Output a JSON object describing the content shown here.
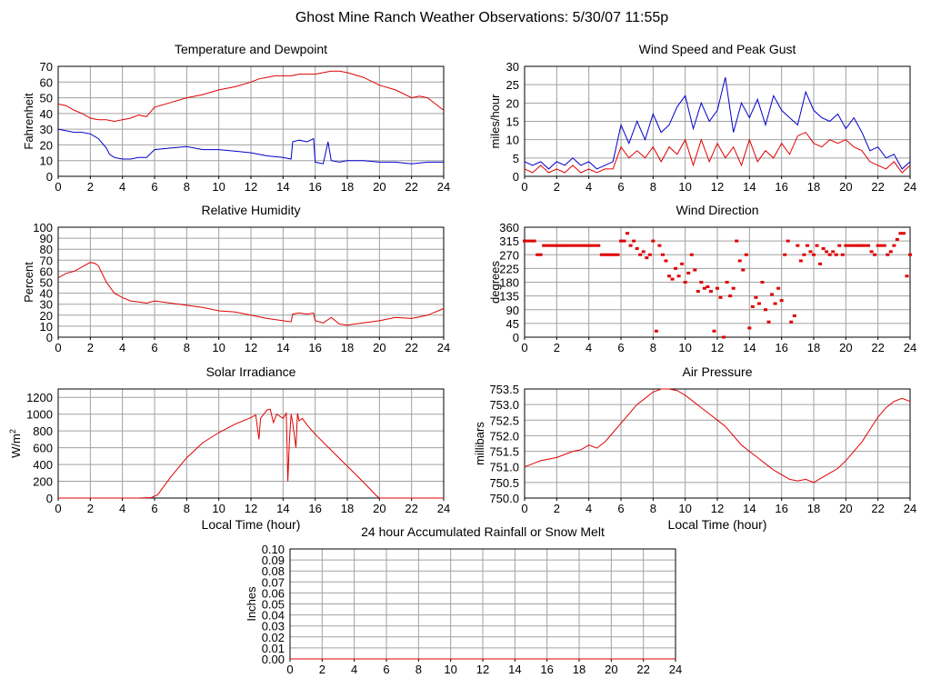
{
  "page_title": "Ghost Mine Ranch Weather Observations: 5/30/07 11:55p",
  "colors": {
    "red": "#e00000",
    "blue": "#0000cc",
    "grid": "#a0a0a0",
    "axis": "#000000"
  },
  "chart_data": [
    {
      "id": "temp",
      "type": "line",
      "title": "Temperature and Dewpoint",
      "ylabel": "Fahrenheit",
      "xlabel": "",
      "xlim": [
        0,
        24
      ],
      "ylim": [
        0,
        70
      ],
      "xticks": [
        "0",
        "2",
        "4",
        "6",
        "8",
        "10",
        "12",
        "14",
        "16",
        "18",
        "20",
        "22",
        "24"
      ],
      "yticks": [
        "0",
        "10",
        "20",
        "30",
        "40",
        "50",
        "60",
        "70"
      ],
      "grid": true,
      "series": [
        {
          "color": "#e00000",
          "x": [
            0,
            0.5,
            1,
            1.5,
            2,
            2.5,
            3,
            3.5,
            4,
            4.5,
            5,
            5.5,
            6,
            7,
            8,
            9,
            10,
            11,
            12,
            12.5,
            13,
            13.5,
            14,
            14.5,
            15,
            15.5,
            16,
            16.5,
            17,
            17.5,
            18,
            19,
            20,
            21,
            22,
            22.5,
            23,
            23.5,
            24
          ],
          "y": [
            46,
            45,
            42,
            40,
            37,
            36,
            36,
            35,
            36,
            37,
            39,
            38,
            44,
            47,
            50,
            52,
            55,
            57,
            60,
            62,
            63,
            64,
            64,
            64,
            65,
            65,
            65,
            66,
            67,
            67,
            66,
            63,
            58,
            55,
            50,
            51,
            50,
            46,
            42
          ]
        },
        {
          "color": "#0000cc",
          "x": [
            0,
            0.5,
            1,
            1.5,
            2,
            2.5,
            3,
            3.2,
            3.5,
            4,
            4.5,
            5,
            5.5,
            6,
            7,
            8,
            9,
            10,
            11,
            12,
            13,
            14,
            14.5,
            14.6,
            15,
            15.5,
            15.9,
            16,
            16.5,
            16.8,
            17,
            17.5,
            18,
            19,
            20,
            21,
            22,
            23,
            24
          ],
          "y": [
            30,
            29,
            28,
            28,
            27,
            24,
            18,
            14,
            12,
            11,
            11,
            12,
            12,
            17,
            18,
            19,
            17,
            17,
            16,
            15,
            13,
            12,
            11,
            22,
            23,
            22,
            24,
            9,
            8,
            22,
            10,
            9,
            10,
            10,
            9,
            9,
            8,
            9,
            9
          ]
        }
      ]
    },
    {
      "id": "wind",
      "type": "line",
      "title": "Wind Speed and Peak Gust",
      "ylabel": "miles/hour",
      "xlabel": "",
      "xlim": [
        0,
        24
      ],
      "ylim": [
        0,
        30
      ],
      "xticks": [
        "0",
        "2",
        "4",
        "6",
        "8",
        "10",
        "12",
        "14",
        "16",
        "18",
        "20",
        "22",
        "24"
      ],
      "yticks": [
        "0",
        "5",
        "10",
        "15",
        "20",
        "25",
        "30"
      ],
      "grid": true,
      "series": [
        {
          "color": "#0000cc",
          "x": [
            0,
            0.5,
            1,
            1.5,
            2,
            2.5,
            3,
            3.5,
            4,
            4.5,
            5,
            5.5,
            6,
            6.5,
            7,
            7.5,
            8,
            8.5,
            9,
            9.5,
            10,
            10.5,
            11,
            11.5,
            12,
            12.5,
            13,
            13.5,
            14,
            14.5,
            15,
            15.5,
            16,
            16.5,
            17,
            17.5,
            18,
            18.5,
            19,
            19.5,
            20,
            20.5,
            21,
            21.5,
            22,
            22.5,
            23,
            23.5,
            24
          ],
          "y": [
            4,
            3,
            4,
            2,
            4,
            3,
            5,
            3,
            4,
            2,
            3,
            4,
            14,
            9,
            15,
            10,
            17,
            12,
            14,
            19,
            22,
            13,
            20,
            15,
            18,
            27,
            12,
            20,
            16,
            21,
            14,
            22,
            18,
            16,
            14,
            23,
            18,
            16,
            15,
            17,
            13,
            16,
            12,
            7,
            8,
            5,
            6,
            2,
            4
          ]
        },
        {
          "color": "#e00000",
          "x": [
            0,
            0.5,
            1,
            1.5,
            2,
            2.5,
            3,
            3.5,
            4,
            4.5,
            5,
            5.5,
            6,
            6.5,
            7,
            7.5,
            8,
            8.5,
            9,
            9.5,
            10,
            10.5,
            11,
            11.5,
            12,
            12.5,
            13,
            13.5,
            14,
            14.5,
            15,
            15.5,
            16,
            16.5,
            17,
            17.5,
            18,
            18.5,
            19,
            19.5,
            20,
            20.5,
            21,
            21.5,
            22,
            22.5,
            23,
            23.5,
            24
          ],
          "y": [
            2,
            1,
            3,
            1,
            2,
            1,
            3,
            1,
            2,
            1,
            2,
            2,
            8,
            5,
            7,
            5,
            8,
            4,
            8,
            6,
            10,
            3,
            10,
            4,
            9,
            5,
            8,
            3,
            10,
            4,
            7,
            5,
            9,
            6,
            11,
            12,
            9,
            8,
            10,
            9,
            10,
            8,
            7,
            4,
            3,
            2,
            4,
            1,
            3
          ]
        }
      ]
    },
    {
      "id": "rh",
      "type": "line",
      "title": "Relative Humidity",
      "ylabel": "Percent",
      "xlabel": "",
      "xlim": [
        0,
        24
      ],
      "ylim": [
        0,
        100
      ],
      "xticks": [
        "0",
        "2",
        "4",
        "6",
        "8",
        "10",
        "12",
        "14",
        "16",
        "18",
        "20",
        "22",
        "24"
      ],
      "yticks": [
        "0",
        "10",
        "20",
        "30",
        "40",
        "50",
        "60",
        "70",
        "80",
        "90",
        "100"
      ],
      "grid": true,
      "series": [
        {
          "color": "#e00000",
          "x": [
            0,
            0.5,
            1,
            1.5,
            2,
            2.3,
            2.5,
            3,
            3.5,
            4,
            4.5,
            5,
            5.5,
            6,
            7,
            8,
            9,
            10,
            11,
            12,
            13,
            14,
            14.5,
            14.6,
            15,
            15.5,
            15.9,
            16,
            16.5,
            17,
            17.5,
            18,
            19,
            20,
            21,
            22,
            23,
            24
          ],
          "y": [
            54,
            58,
            60,
            64,
            68,
            67,
            65,
            50,
            40,
            36,
            33,
            32,
            31,
            33,
            31,
            29,
            27,
            24,
            23,
            20,
            17,
            15,
            14,
            21,
            22,
            21,
            22,
            15,
            13,
            18,
            12,
            11,
            13,
            15,
            18,
            17,
            20,
            26
          ]
        }
      ]
    },
    {
      "id": "wdir",
      "type": "scatter",
      "title": "Wind Direction",
      "ylabel": "degrees",
      "xlabel": "",
      "xlim": [
        0,
        24
      ],
      "ylim": [
        0,
        360
      ],
      "xticks": [
        "0",
        "2",
        "4",
        "6",
        "8",
        "10",
        "12",
        "14",
        "16",
        "18",
        "20",
        "22",
        "24"
      ],
      "yticks": [
        "0",
        "45",
        "90",
        "135",
        "180",
        "225",
        "270",
        "315",
        "360"
      ],
      "grid": true,
      "series": [
        {
          "color": "#e00000",
          "x": [
            0,
            0.2,
            0.4,
            0.6,
            0.8,
            1,
            1.2,
            1.4,
            1.6,
            1.8,
            2,
            2.2,
            2.4,
            2.6,
            2.8,
            3,
            3.2,
            3.4,
            3.6,
            3.8,
            4,
            4.2,
            4.4,
            4.6,
            4.8,
            5,
            5.2,
            5.4,
            5.6,
            5.8,
            6,
            6.2,
            6.4,
            6.6,
            6.8,
            7,
            7.2,
            7.4,
            7.6,
            7.8,
            8,
            8.2,
            8.4,
            8.6,
            8.8,
            9,
            9.2,
            9.4,
            9.6,
            9.8,
            10,
            10.2,
            10.4,
            10.6,
            10.8,
            11,
            11.2,
            11.4,
            11.6,
            11.8,
            12,
            12.2,
            12.4,
            12.6,
            12.8,
            13,
            13.2,
            13.4,
            13.6,
            13.8,
            14,
            14.2,
            14.4,
            14.6,
            14.8,
            15,
            15.2,
            15.4,
            15.6,
            15.8,
            16,
            16.2,
            16.4,
            16.6,
            16.8,
            17,
            17.2,
            17.4,
            17.6,
            17.8,
            18,
            18.2,
            18.4,
            18.6,
            18.8,
            19,
            19.2,
            19.4,
            19.6,
            19.8,
            20,
            20.2,
            20.4,
            20.6,
            20.8,
            21,
            21.2,
            21.4,
            21.6,
            21.8,
            22,
            22.2,
            22.4,
            22.6,
            22.8,
            23,
            23.2,
            23.4,
            23.6,
            23.8,
            24
          ],
          "y": [
            315,
            315,
            315,
            315,
            270,
            270,
            300,
            300,
            300,
            300,
            300,
            300,
            300,
            300,
            300,
            300,
            300,
            300,
            300,
            300,
            300,
            300,
            300,
            300,
            270,
            270,
            270,
            270,
            270,
            270,
            315,
            315,
            340,
            300,
            315,
            290,
            270,
            280,
            260,
            270,
            315,
            20,
            300,
            270,
            250,
            200,
            190,
            225,
            200,
            240,
            180,
            210,
            270,
            220,
            150,
            180,
            160,
            165,
            150,
            20,
            160,
            130,
            0,
            180,
            135,
            160,
            315,
            250,
            220,
            270,
            30,
            100,
            130,
            110,
            180,
            90,
            50,
            140,
            110,
            160,
            120,
            270,
            315,
            50,
            70,
            300,
            250,
            270,
            300,
            280,
            270,
            300,
            240,
            290,
            280,
            270,
            280,
            270,
            300,
            270,
            300,
            300,
            300,
            300,
            300,
            300,
            300,
            300,
            280,
            270,
            300,
            300,
            300,
            270,
            280,
            300,
            320,
            340,
            340,
            200,
            270
          ]
        }
      ]
    },
    {
      "id": "solar",
      "type": "line",
      "title": "Solar Irradiance",
      "ylabel": "W/m2",
      "ylabel_main": "W/m",
      "ylabel_sup": "2",
      "xlabel": "Local Time (hour)",
      "xlim": [
        0,
        24
      ],
      "ylim": [
        0,
        1300
      ],
      "xticks": [
        "0",
        "2",
        "4",
        "6",
        "8",
        "10",
        "12",
        "14",
        "16",
        "18",
        "20",
        "22",
        "24"
      ],
      "yticks": [
        "0",
        "200",
        "400",
        "600",
        "800",
        "1000",
        "1200"
      ],
      "grid": true,
      "series": [
        {
          "color": "#e00000",
          "x": [
            0,
            1,
            2,
            3,
            4,
            5,
            5.8,
            6.2,
            7,
            8,
            9,
            10,
            11,
            12,
            12.3,
            12.5,
            12.6,
            12.8,
            13,
            13.2,
            13.4,
            13.6,
            14,
            14.2,
            14.3,
            14.4,
            14.5,
            14.6,
            14.8,
            14.9,
            15,
            15.2,
            15.5,
            16,
            17,
            18,
            19,
            19.8,
            20,
            21,
            22,
            23,
            24
          ],
          "y": [
            0,
            0,
            0,
            0,
            0,
            0,
            5,
            40,
            250,
            480,
            660,
            780,
            880,
            960,
            990,
            700,
            950,
            1000,
            1050,
            1060,
            900,
            1000,
            950,
            1010,
            200,
            700,
            1000,
            900,
            600,
            1010,
            920,
            950,
            870,
            760,
            570,
            380,
            190,
            30,
            0,
            0,
            0,
            0,
            0
          ]
        }
      ]
    },
    {
      "id": "pressure",
      "type": "line",
      "title": "Air Pressure",
      "ylabel": "millibars",
      "xlabel": "Local Time (hour)",
      "xlim": [
        0,
        24
      ],
      "ylim": [
        750.0,
        753.5
      ],
      "xticks": [
        "0",
        "2",
        "4",
        "6",
        "8",
        "10",
        "12",
        "14",
        "16",
        "18",
        "20",
        "22",
        "24"
      ],
      "yticks": [
        "750.0",
        "750.5",
        "751.0",
        "751.5",
        "752.0",
        "752.5",
        "753.0",
        "753.5"
      ],
      "grid": true,
      "series": [
        {
          "color": "#e00000",
          "x": [
            0,
            0.5,
            1,
            1.5,
            2,
            2.5,
            3,
            3.5,
            4,
            4.5,
            5,
            5.5,
            6,
            6.5,
            7,
            7.5,
            8,
            8.5,
            9,
            9.5,
            10,
            10.5,
            11,
            11.5,
            12,
            12.5,
            13,
            13.5,
            14,
            14.5,
            15,
            15.5,
            16,
            16.5,
            17,
            17.5,
            18,
            18.5,
            19,
            19.5,
            20,
            20.5,
            21,
            21.5,
            22,
            22.5,
            23,
            23.5,
            24
          ],
          "y": [
            751.0,
            751.1,
            751.2,
            751.25,
            751.3,
            751.4,
            751.5,
            751.55,
            751.7,
            751.6,
            751.8,
            752.1,
            752.4,
            752.7,
            753.0,
            753.2,
            753.4,
            753.5,
            753.5,
            753.45,
            753.3,
            753.1,
            752.9,
            752.7,
            752.5,
            752.3,
            752.0,
            751.7,
            751.5,
            751.3,
            751.1,
            750.9,
            750.75,
            750.6,
            750.55,
            750.6,
            750.5,
            750.65,
            750.8,
            750.95,
            751.2,
            751.5,
            751.8,
            752.2,
            752.6,
            752.9,
            753.1,
            753.2,
            753.1
          ]
        }
      ]
    },
    {
      "id": "rain",
      "type": "line",
      "title": "24 hour Accumulated Rainfall or Snow Melt",
      "ylabel": "Inches",
      "xlabel": "",
      "xlim": [
        0,
        24
      ],
      "ylim": [
        0,
        0.1
      ],
      "xticks": [
        "0",
        "2",
        "4",
        "6",
        "8",
        "10",
        "12",
        "14",
        "16",
        "18",
        "20",
        "22",
        "24"
      ],
      "yticks": [
        "0.00",
        "0.01",
        "0.02",
        "0.03",
        "0.04",
        "0.05",
        "0.06",
        "0.07",
        "0.08",
        "0.09",
        "0.10"
      ],
      "grid": true,
      "series": [
        {
          "color": "#e00000",
          "x": [
            0,
            24
          ],
          "y": [
            0,
            0
          ]
        }
      ]
    }
  ]
}
